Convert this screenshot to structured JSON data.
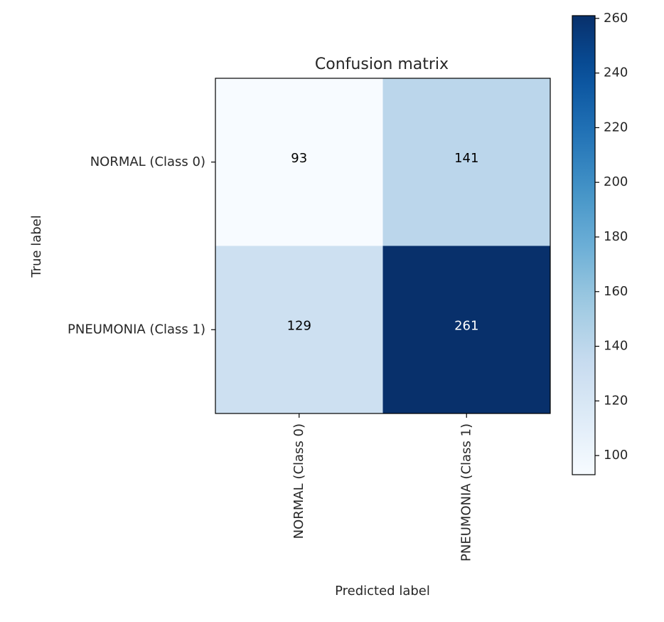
{
  "chart_data": {
    "type": "heatmap",
    "title": "Confusion matrix",
    "xlabel": "Predicted label",
    "ylabel": "True label",
    "x_categories": [
      "NORMAL (Class 0)",
      "PNEUMONIA (Class 1)"
    ],
    "y_categories": [
      "NORMAL (Class 0)",
      "PNEUMONIA (Class 1)"
    ],
    "values": [
      [
        93,
        141
      ],
      [
        129,
        261
      ]
    ],
    "colormap": "Blues",
    "colorbar": {
      "range": [
        93,
        261
      ],
      "ticks": [
        100,
        120,
        140,
        160,
        180,
        200,
        220,
        240,
        260
      ]
    },
    "text_color_light": "#ffffff",
    "text_color_dark": "#000000"
  }
}
